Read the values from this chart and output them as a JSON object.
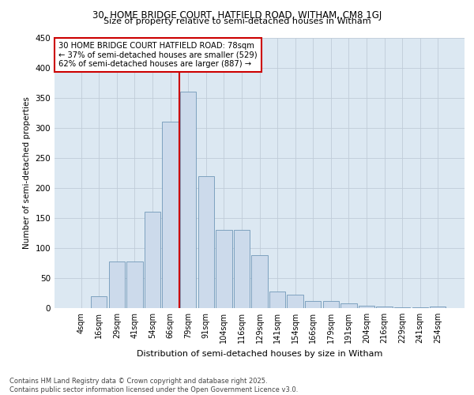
{
  "title_line1": "30, HOME BRIDGE COURT, HATFIELD ROAD, WITHAM, CM8 1GJ",
  "title_line2": "Size of property relative to semi-detached houses in Witham",
  "xlabel": "Distribution of semi-detached houses by size in Witham",
  "ylabel": "Number of semi-detached properties",
  "categories": [
    "4sqm",
    "16sqm",
    "29sqm",
    "41sqm",
    "54sqm",
    "66sqm",
    "79sqm",
    "91sqm",
    "104sqm",
    "116sqm",
    "129sqm",
    "141sqm",
    "154sqm",
    "166sqm",
    "179sqm",
    "191sqm",
    "204sqm",
    "216sqm",
    "229sqm",
    "241sqm",
    "254sqm"
  ],
  "values": [
    0,
    20,
    78,
    78,
    160,
    310,
    360,
    220,
    130,
    130,
    88,
    27,
    22,
    12,
    12,
    8,
    4,
    2,
    1,
    1,
    3
  ],
  "bar_color": "#ccdaeb",
  "bar_edge_color": "#7098b8",
  "grid_color": "#c0ccd8",
  "bg_color": "#dce8f2",
  "vline_color": "#cc0000",
  "annotation_text": "30 HOME BRIDGE COURT HATFIELD ROAD: 78sqm\n← 37% of semi-detached houses are smaller (529)\n62% of semi-detached houses are larger (887) →",
  "annotation_box_color": "#ffffff",
  "annotation_border_color": "#cc0000",
  "footer_text": "Contains HM Land Registry data © Crown copyright and database right 2025.\nContains public sector information licensed under the Open Government Licence v3.0.",
  "ylim": [
    0,
    450
  ],
  "yticks": [
    0,
    50,
    100,
    150,
    200,
    250,
    300,
    350,
    400,
    450
  ]
}
